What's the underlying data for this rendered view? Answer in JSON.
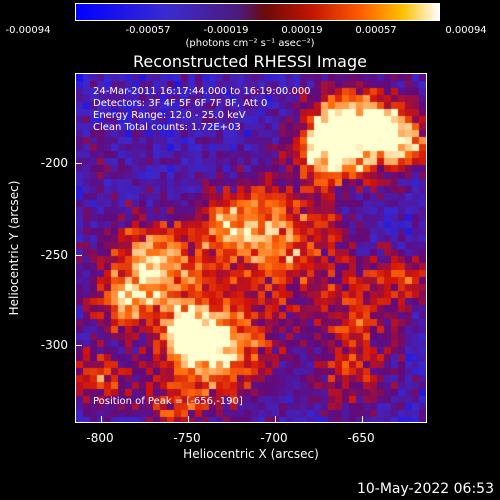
{
  "colorbar": {
    "ticks": [
      "-0.00094",
      "-0.00057",
      "-0.00019",
      "0.00019",
      "0.00057",
      "0.00094"
    ],
    "units": "(photons cm⁻² s⁻¹ asec⁻²)"
  },
  "title": "Reconstructed RHESSI Image",
  "annotations": {
    "time": "24-Mar-2011 16:17:44.000 to 16:19:00.000",
    "detectors": "Detectors: 3F 4F 5F 6F 7F 8F, Att 0",
    "energy": "Energy Range: 12.0 - 25.0 keV",
    "clean": "Clean     Total counts: 1.72E+03",
    "peak": "Position of Peak = [-656,-190]"
  },
  "chart_data": {
    "type": "heatmap",
    "title": "Reconstructed RHESSI Image",
    "xlabel": "Heliocentric X (arcsec)",
    "ylabel": "Heliocentric Y (arcsec)",
    "x_ticks": [
      "-800",
      "-750",
      "-700",
      "-650"
    ],
    "y_ticks": [
      "-200",
      "-250",
      "-300"
    ],
    "xlim": [
      -815,
      -615
    ],
    "ylim": [
      -345,
      -165
    ],
    "colorbar_range": [
      -0.00094,
      0.00094
    ],
    "peak_position": [
      -656,
      -190
    ]
  },
  "timestamp": "10-May-2022 06:53"
}
